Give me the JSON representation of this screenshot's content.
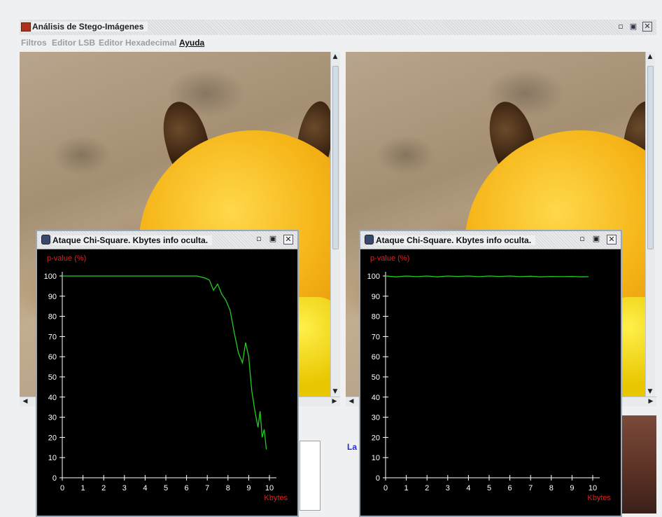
{
  "window": {
    "title": "Análisis de Stego-Imágenes"
  },
  "menu": {
    "items": [
      {
        "label": "Filtros",
        "active": false
      },
      {
        "label": "Editor LSB",
        "active": false
      },
      {
        "label": "Editor Hexadecimal",
        "active": false
      },
      {
        "label": "Ayuda",
        "active": true
      }
    ]
  },
  "lower_panel": {
    "link_text": "La"
  },
  "icons": {
    "app": "app-icon",
    "minimize": "minimize-icon",
    "maximize": "maximize-icon",
    "close": "close-icon",
    "frame": "frame-icon"
  },
  "chi_windows": [
    {
      "title": "Ataque Chi-Square. Kbytes info oculta.",
      "chart_data": {
        "type": "line",
        "title": "",
        "xlabel": "Kbytes",
        "ylabel": "p-value (%)",
        "xlim": [
          0,
          10
        ],
        "ylim": [
          0,
          100
        ],
        "x_ticks": [
          "0",
          "1",
          "2",
          "3",
          "4",
          "5",
          "6",
          "7",
          "8",
          "9",
          "10"
        ],
        "y_ticks": [
          "0",
          "10",
          "20",
          "30",
          "40",
          "50",
          "60",
          "70",
          "80",
          "90",
          "100"
        ],
        "grid": false,
        "colors": {
          "line": "#22cc22",
          "axis": "#ffffff",
          "label": "#dd2222",
          "background": "#000000"
        },
        "series": [
          {
            "x": [
              0,
              1,
              2,
              3,
              4,
              5,
              6,
              6.5,
              6.9,
              7.1,
              7.3,
              7.5,
              7.7,
              7.9,
              8.1,
              8.3,
              8.5,
              8.7,
              8.85,
              9.0,
              9.15,
              9.3,
              9.45,
              9.55,
              9.65,
              9.75,
              9.85
            ],
            "y": [
              100,
              100,
              100,
              100,
              100,
              100,
              100,
              100,
              99,
              98,
              93,
              96,
              91,
              88,
              83,
              72,
              62,
              57,
              67,
              60,
              43,
              33,
              25,
              33,
              20,
              24,
              14
            ]
          }
        ]
      }
    },
    {
      "title": "Ataque Chi-Square. Kbytes info oculta.",
      "chart_data": {
        "type": "line",
        "title": "",
        "xlabel": "Kbytes",
        "ylabel": "p-value (%)",
        "xlim": [
          0,
          10
        ],
        "ylim": [
          0,
          100
        ],
        "x_ticks": [
          "0",
          "1",
          "2",
          "3",
          "4",
          "5",
          "6",
          "7",
          "8",
          "9",
          "10"
        ],
        "y_ticks": [
          "0",
          "10",
          "20",
          "30",
          "40",
          "50",
          "60",
          "70",
          "80",
          "90",
          "100"
        ],
        "grid": false,
        "colors": {
          "line": "#22cc22",
          "axis": "#ffffff",
          "label": "#dd2222",
          "background": "#000000"
        },
        "series": [
          {
            "x": [
              0,
              0.5,
              1,
              1.5,
              2,
              2.5,
              3,
              3.5,
              4,
              4.5,
              5,
              5.5,
              6,
              6.5,
              7,
              7.5,
              8,
              8.5,
              9,
              9.5,
              9.8
            ],
            "y": [
              100,
              99.6,
              100,
              99.7,
              100,
              99.6,
              100,
              99.8,
              100,
              99.7,
              100,
              99.8,
              100,
              99.7,
              99.9,
              99.6,
              99.8,
              99.7,
              99.8,
              99.6,
              99.7
            ]
          }
        ]
      }
    }
  ]
}
